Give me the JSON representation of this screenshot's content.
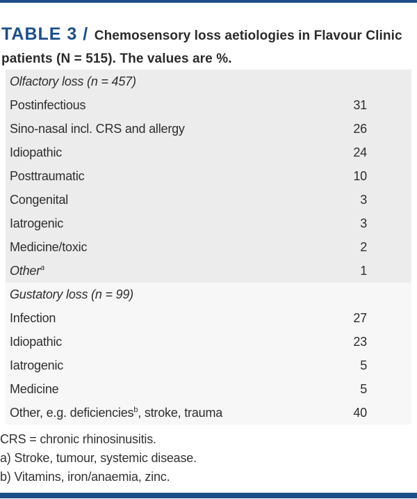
{
  "accent_color": "#1c4e89",
  "section_colors": {
    "olfactory_block": "#ececec",
    "gustatory_block": "#f7f7f7"
  },
  "header": {
    "table_label": "TABLE 3 /",
    "title": "Chemosensory loss aetiologies in Flavour Clinic patients (N = 515). The values are %."
  },
  "table": {
    "sections": [
      {
        "header": "Olfactory loss (n = 457)",
        "rows": [
          {
            "label": "Postinfectious",
            "value": "31"
          },
          {
            "label": "Sino-nasal incl. CRS and allergy",
            "value": "26"
          },
          {
            "label": "Idiopathic",
            "value": "24"
          },
          {
            "label": "Posttraumatic",
            "value": "10"
          },
          {
            "label": "Congenital",
            "value": "3"
          },
          {
            "label": "Iatrogenic",
            "value": "3"
          },
          {
            "label": "Medicine/toxic",
            "value": "2"
          },
          {
            "label": "Other",
            "sup": "a",
            "italic": true,
            "value": "1"
          }
        ]
      },
      {
        "header": "Gustatory loss (n = 99)",
        "rows": [
          {
            "label": "Infection",
            "value": "27"
          },
          {
            "label": "Idiopathic",
            "value": "23"
          },
          {
            "label": "Iatrogenic",
            "value": "5"
          },
          {
            "label": "Medicine",
            "value": "5"
          },
          {
            "label": "Other, e.g. deficiencies",
            "sup": "b",
            "tail": ", stroke, trauma",
            "value": "40"
          }
        ]
      }
    ]
  },
  "footnotes": [
    "CRS = chronic rhinosinusitis.",
    "a) Stroke, tumour, systemic disease.",
    "b) Vitamins, iron/anaemia, zinc."
  ]
}
